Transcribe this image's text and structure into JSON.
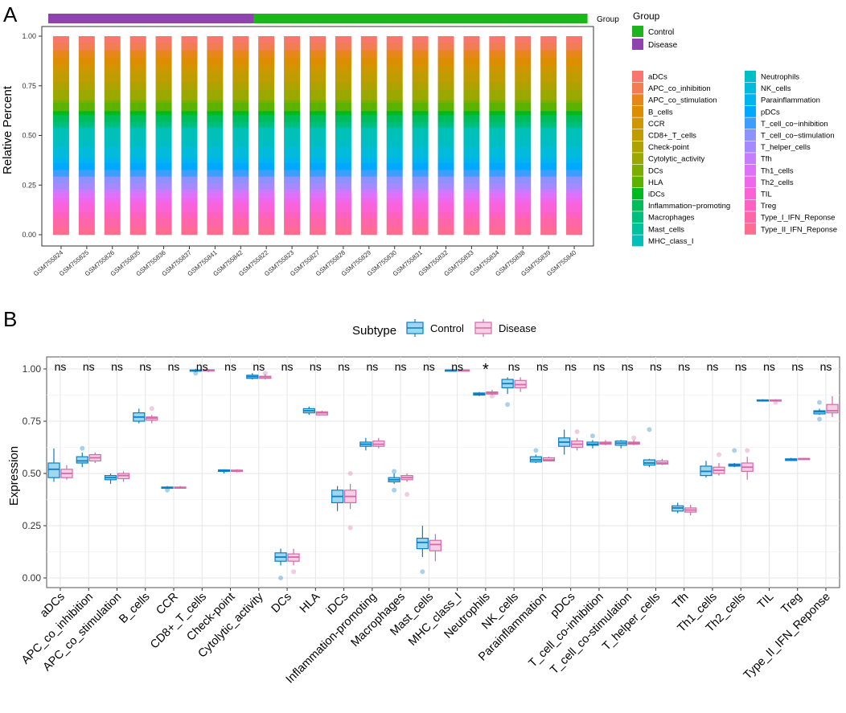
{
  "panels": {
    "a": "A",
    "b": "B"
  },
  "colors": {
    "control": "#1EB41E",
    "disease": "#8E44AD",
    "box_control_fill": "#9ED8F0",
    "box_control_stroke": "#0A7FC4",
    "box_disease_fill": "#F6CFE4",
    "box_disease_stroke": "#D46AA8",
    "grid": "#E6E6E6",
    "panel_border": "#555555"
  },
  "chart_data": [
    {
      "type": "bar",
      "stacked": true,
      "ylabel": "Relative Percent",
      "yticks": [
        "0.00",
        "0.25",
        "0.50",
        "0.75",
        "1.00"
      ],
      "ylim": [
        0,
        1
      ],
      "group_bar_label": "Group",
      "legend_group": {
        "title": "Group",
        "items": [
          {
            "label": "Control",
            "color": "#1EB41E"
          },
          {
            "label": "Disease",
            "color": "#8E44AD"
          }
        ]
      },
      "samples": [
        {
          "id": "GSM755824",
          "group": "Disease"
        },
        {
          "id": "GSM755825",
          "group": "Disease"
        },
        {
          "id": "GSM755826",
          "group": "Disease"
        },
        {
          "id": "GSM755835",
          "group": "Disease"
        },
        {
          "id": "GSM755836",
          "group": "Disease"
        },
        {
          "id": "GSM755837",
          "group": "Disease"
        },
        {
          "id": "GSM755841",
          "group": "Disease"
        },
        {
          "id": "GSM755842",
          "group": "Disease"
        },
        {
          "id": "GSM755822",
          "group": "Control"
        },
        {
          "id": "GSM755823",
          "group": "Control"
        },
        {
          "id": "GSM755827",
          "group": "Control"
        },
        {
          "id": "GSM755828",
          "group": "Control"
        },
        {
          "id": "GSM755829",
          "group": "Control"
        },
        {
          "id": "GSM755830",
          "group": "Control"
        },
        {
          "id": "GSM755831",
          "group": "Control"
        },
        {
          "id": "GSM755832",
          "group": "Control"
        },
        {
          "id": "GSM755833",
          "group": "Control"
        },
        {
          "id": "GSM755834",
          "group": "Control"
        },
        {
          "id": "GSM755838",
          "group": "Control"
        },
        {
          "id": "GSM755839",
          "group": "Control"
        },
        {
          "id": "GSM755840",
          "group": "Control"
        }
      ],
      "categories": [
        "aDCs",
        "APC_co_inhibition",
        "APC_co_stimulation",
        "B_cells",
        "CCR",
        "CD8+_T_cells",
        "Check-point",
        "Cytolytic_activity",
        "DCs",
        "HLA",
        "iDCs",
        "Inflammation-promoting",
        "Macrophages",
        "Mast_cells",
        "MHC_class_I",
        "Neutrophils",
        "NK_cells",
        "Parainflammation",
        "pDCs",
        "T_cell_co-inhibition",
        "T_cell_co-stimulation",
        "T_helper_cells",
        "Tfh",
        "Th1_cells",
        "Th2_cells",
        "TIL",
        "Treg",
        "Type_I_IFN_Reponse",
        "Type_II_IFN_Reponse"
      ],
      "legend_labels": [
        "aDCs",
        "APC_co_inhibition",
        "APC_co_stimulation",
        "B_cells",
        "CCR",
        "CD8+_T_cells",
        "Check-point",
        "Cytolytic_activity",
        "DCs",
        "HLA",
        "iDCs",
        "Inflammation−promoting",
        "Macrophages",
        "Mast_cells",
        "MHC_class_I",
        "Neutrophils",
        "NK_cells",
        "Parainflammation",
        "pDCs",
        "T_cell_co−inhibition",
        "T_cell_co−stimulation",
        "T_helper_cells",
        "Tfh",
        "Th1_cells",
        "Th2_cells",
        "TIL",
        "Treg",
        "Type_I_IFN_Reponse",
        "Type_II_IFN_Reponse"
      ],
      "category_colors": [
        "#F8766D",
        "#F27D52",
        "#E7861B",
        "#DB8E00",
        "#CE9700",
        "#BF9D00",
        "#AEA200",
        "#9AA800",
        "#7CAE00",
        "#5BB300",
        "#00B81F",
        "#00BC59",
        "#00BF7D",
        "#00C19C",
        "#00C1B7",
        "#00BFC4",
        "#00BBDA",
        "#00B4EF",
        "#00A9FF",
        "#3D9EFF",
        "#8F91FF",
        "#A58AFF",
        "#C77CFF",
        "#DE71F9",
        "#EF67EB",
        "#FA62D8",
        "#FF61C3",
        "#FF66A8",
        "#FF6C91"
      ],
      "values_per_sample": [
        0.028,
        0.036,
        0.035,
        0.036,
        0.031,
        0.045,
        0.035,
        0.046,
        0.013,
        0.038,
        0.019,
        0.03,
        0.023,
        0.008,
        0.047,
        0.041,
        0.044,
        0.026,
        0.032,
        0.03,
        0.031,
        0.026,
        0.016,
        0.024,
        0.025,
        0.04,
        0.027,
        0.043,
        0.036
      ]
    },
    {
      "type": "box",
      "ylabel": "Expression",
      "legend_title": "Subtype",
      "legend_items": [
        "Control",
        "Disease"
      ],
      "yticks": [
        "0.00",
        "0.25",
        "0.50",
        "0.75",
        "1.00"
      ],
      "ylim": [
        -0.04,
        1.04
      ],
      "categories": [
        "aDCs",
        "APC_co_inhibition",
        "APC_co_stimulation",
        "B_cells",
        "CCR",
        "CD8+_T_cells",
        "Check-point",
        "Cytolytic_activity",
        "DCs",
        "HLA",
        "iDCs",
        "Inflammation-promoting",
        "Macrophages",
        "Mast_cells",
        "MHC_class_I",
        "Neutrophils",
        "NK_cells",
        "Parainflammation",
        "pDCs",
        "T_cell_co-inhibition",
        "T_cell_co-stimulation",
        "T_helper_cells",
        "Tfh",
        "Th1_cells",
        "Th2_cells",
        "TIL",
        "Treg",
        "Type_II_IFN_Reponse"
      ],
      "significance": [
        "ns",
        "ns",
        "ns",
        "ns",
        "ns",
        "ns",
        "ns",
        "ns",
        "ns",
        "ns",
        "ns",
        "ns",
        "ns",
        "ns",
        "ns",
        "*",
        "ns",
        "ns",
        "ns",
        "ns",
        "ns",
        "ns",
        "ns",
        "ns",
        "ns",
        "ns",
        "ns",
        "ns"
      ],
      "series": [
        {
          "name": "Control",
          "boxes": [
            {
              "min": 0.46,
              "q1": 0.48,
              "median": 0.52,
              "q3": 0.55,
              "max": 0.62,
              "outliers": []
            },
            {
              "min": 0.53,
              "q1": 0.55,
              "median": 0.56,
              "q3": 0.58,
              "max": 0.6,
              "outliers": [
                0.62
              ]
            },
            {
              "min": 0.45,
              "q1": 0.47,
              "median": 0.48,
              "q3": 0.49,
              "max": 0.5,
              "outliers": []
            },
            {
              "min": 0.74,
              "q1": 0.75,
              "median": 0.77,
              "q3": 0.79,
              "max": 0.81,
              "outliers": []
            },
            {
              "min": 0.43,
              "q1": 0.43,
              "median": 0.43,
              "q3": 0.435,
              "max": 0.44,
              "outliers": [
                0.42
              ]
            },
            {
              "min": 0.985,
              "q1": 0.99,
              "median": 0.993,
              "q3": 0.995,
              "max": 1.0,
              "outliers": [
                0.98
              ]
            },
            {
              "min": 0.5,
              "q1": 0.51,
              "median": 0.513,
              "q3": 0.517,
              "max": 0.52,
              "outliers": []
            },
            {
              "min": 0.95,
              "q1": 0.955,
              "median": 0.963,
              "q3": 0.97,
              "max": 0.98,
              "outliers": []
            },
            {
              "min": 0.06,
              "q1": 0.08,
              "median": 0.1,
              "q3": 0.12,
              "max": 0.14,
              "outliers": [
                0.0
              ]
            },
            {
              "min": 0.78,
              "q1": 0.79,
              "median": 0.8,
              "q3": 0.81,
              "max": 0.82,
              "outliers": []
            },
            {
              "min": 0.32,
              "q1": 0.36,
              "median": 0.39,
              "q3": 0.42,
              "max": 0.44,
              "outliers": []
            },
            {
              "min": 0.61,
              "q1": 0.63,
              "median": 0.64,
              "q3": 0.65,
              "max": 0.67,
              "outliers": []
            },
            {
              "min": 0.45,
              "q1": 0.46,
              "median": 0.47,
              "q3": 0.48,
              "max": 0.5,
              "outliers": [
                0.42,
                0.51
              ]
            },
            {
              "min": 0.1,
              "q1": 0.14,
              "median": 0.17,
              "q3": 0.19,
              "max": 0.25,
              "outliers": [
                0.03
              ]
            },
            {
              "min": 0.99,
              "q1": 0.992,
              "median": 0.994,
              "q3": 0.995,
              "max": 0.997,
              "outliers": []
            },
            {
              "min": 0.87,
              "q1": 0.875,
              "median": 0.88,
              "q3": 0.885,
              "max": 0.89,
              "outliers": []
            },
            {
              "min": 0.88,
              "q1": 0.91,
              "median": 0.93,
              "q3": 0.95,
              "max": 0.96,
              "outliers": [
                0.83
              ]
            },
            {
              "min": 0.55,
              "q1": 0.555,
              "median": 0.565,
              "q3": 0.58,
              "max": 0.59,
              "outliers": [
                0.61
              ]
            },
            {
              "min": 0.59,
              "q1": 0.63,
              "median": 0.65,
              "q3": 0.67,
              "max": 0.71,
              "outliers": []
            },
            {
              "min": 0.62,
              "q1": 0.635,
              "median": 0.64,
              "q3": 0.65,
              "max": 0.66,
              "outliers": [
                0.68
              ]
            },
            {
              "min": 0.62,
              "q1": 0.635,
              "median": 0.645,
              "q3": 0.655,
              "max": 0.66,
              "outliers": []
            },
            {
              "min": 0.53,
              "q1": 0.54,
              "median": 0.55,
              "q3": 0.565,
              "max": 0.57,
              "outliers": [
                0.71
              ]
            },
            {
              "min": 0.31,
              "q1": 0.32,
              "median": 0.335,
              "q3": 0.345,
              "max": 0.36,
              "outliers": []
            },
            {
              "min": 0.48,
              "q1": 0.49,
              "median": 0.51,
              "q3": 0.535,
              "max": 0.56,
              "outliers": []
            },
            {
              "min": 0.53,
              "q1": 0.535,
              "median": 0.54,
              "q3": 0.545,
              "max": 0.55,
              "outliers": [
                0.61
              ]
            },
            {
              "min": 0.845,
              "q1": 0.848,
              "median": 0.85,
              "q3": 0.852,
              "max": 0.855,
              "outliers": []
            },
            {
              "min": 0.56,
              "q1": 0.562,
              "median": 0.565,
              "q3": 0.57,
              "max": 0.575,
              "outliers": []
            },
            {
              "min": 0.78,
              "q1": 0.785,
              "median": 0.795,
              "q3": 0.8,
              "max": 0.81,
              "outliers": [
                0.76,
                0.84
              ]
            }
          ]
        },
        {
          "name": "Disease",
          "boxes": [
            {
              "min": 0.47,
              "q1": 0.48,
              "median": 0.5,
              "q3": 0.52,
              "max": 0.54,
              "outliers": []
            },
            {
              "min": 0.55,
              "q1": 0.56,
              "median": 0.575,
              "q3": 0.59,
              "max": 0.6,
              "outliers": []
            },
            {
              "min": 0.46,
              "q1": 0.475,
              "median": 0.49,
              "q3": 0.5,
              "max": 0.51,
              "outliers": []
            },
            {
              "min": 0.74,
              "q1": 0.755,
              "median": 0.765,
              "q3": 0.77,
              "max": 0.78,
              "outliers": [
                0.81
              ]
            },
            {
              "min": 0.43,
              "q1": 0.43,
              "median": 0.433,
              "q3": 0.435,
              "max": 0.44,
              "outliers": []
            },
            {
              "min": 0.985,
              "q1": 0.99,
              "median": 0.993,
              "q3": 0.996,
              "max": 1.0,
              "outliers": []
            },
            {
              "min": 0.505,
              "q1": 0.51,
              "median": 0.513,
              "q3": 0.516,
              "max": 0.52,
              "outliers": []
            },
            {
              "min": 0.95,
              "q1": 0.955,
              "median": 0.962,
              "q3": 0.965,
              "max": 0.975,
              "outliers": [
                0.98
              ]
            },
            {
              "min": 0.06,
              "q1": 0.08,
              "median": 0.1,
              "q3": 0.115,
              "max": 0.14,
              "outliers": [
                0.03
              ]
            },
            {
              "min": 0.78,
              "q1": 0.78,
              "median": 0.79,
              "q3": 0.795,
              "max": 0.8,
              "outliers": []
            },
            {
              "min": 0.33,
              "q1": 0.36,
              "median": 0.39,
              "q3": 0.42,
              "max": 0.45,
              "outliers": [
                0.24,
                0.5
              ]
            },
            {
              "min": 0.62,
              "q1": 0.63,
              "median": 0.64,
              "q3": 0.655,
              "max": 0.67,
              "outliers": []
            },
            {
              "min": 0.46,
              "q1": 0.47,
              "median": 0.48,
              "q3": 0.49,
              "max": 0.5,
              "outliers": [
                0.4
              ]
            },
            {
              "min": 0.08,
              "q1": 0.13,
              "median": 0.16,
              "q3": 0.18,
              "max": 0.21,
              "outliers": []
            },
            {
              "min": 0.99,
              "q1": 0.992,
              "median": 0.994,
              "q3": 0.995,
              "max": 0.997,
              "outliers": []
            },
            {
              "min": 0.875,
              "q1": 0.88,
              "median": 0.885,
              "q3": 0.89,
              "max": 0.9,
              "outliers": [
                0.87
              ]
            },
            {
              "min": 0.89,
              "q1": 0.91,
              "median": 0.925,
              "q3": 0.945,
              "max": 0.96,
              "outliers": []
            },
            {
              "min": 0.56,
              "q1": 0.56,
              "median": 0.565,
              "q3": 0.575,
              "max": 0.58,
              "outliers": []
            },
            {
              "min": 0.61,
              "q1": 0.625,
              "median": 0.64,
              "q3": 0.655,
              "max": 0.67,
              "outliers": [
                0.7
              ]
            },
            {
              "min": 0.635,
              "q1": 0.64,
              "median": 0.645,
              "q3": 0.65,
              "max": 0.66,
              "outliers": []
            },
            {
              "min": 0.635,
              "q1": 0.64,
              "median": 0.645,
              "q3": 0.65,
              "max": 0.66,
              "outliers": [
                0.67
              ]
            },
            {
              "min": 0.54,
              "q1": 0.545,
              "median": 0.55,
              "q3": 0.56,
              "max": 0.57,
              "outliers": []
            },
            {
              "min": 0.3,
              "q1": 0.315,
              "median": 0.325,
              "q3": 0.335,
              "max": 0.35,
              "outliers": []
            },
            {
              "min": 0.49,
              "q1": 0.5,
              "median": 0.515,
              "q3": 0.53,
              "max": 0.55,
              "outliers": [
                0.59
              ]
            },
            {
              "min": 0.47,
              "q1": 0.51,
              "median": 0.53,
              "q3": 0.55,
              "max": 0.58,
              "outliers": [
                0.61
              ]
            },
            {
              "min": 0.845,
              "q1": 0.848,
              "median": 0.85,
              "q3": 0.852,
              "max": 0.855,
              "outliers": [
                0.84
              ]
            },
            {
              "min": 0.565,
              "q1": 0.567,
              "median": 0.57,
              "q3": 0.572,
              "max": 0.575,
              "outliers": []
            },
            {
              "min": 0.77,
              "q1": 0.79,
              "median": 0.8,
              "q3": 0.83,
              "max": 0.87,
              "outliers": []
            }
          ]
        }
      ]
    }
  ]
}
